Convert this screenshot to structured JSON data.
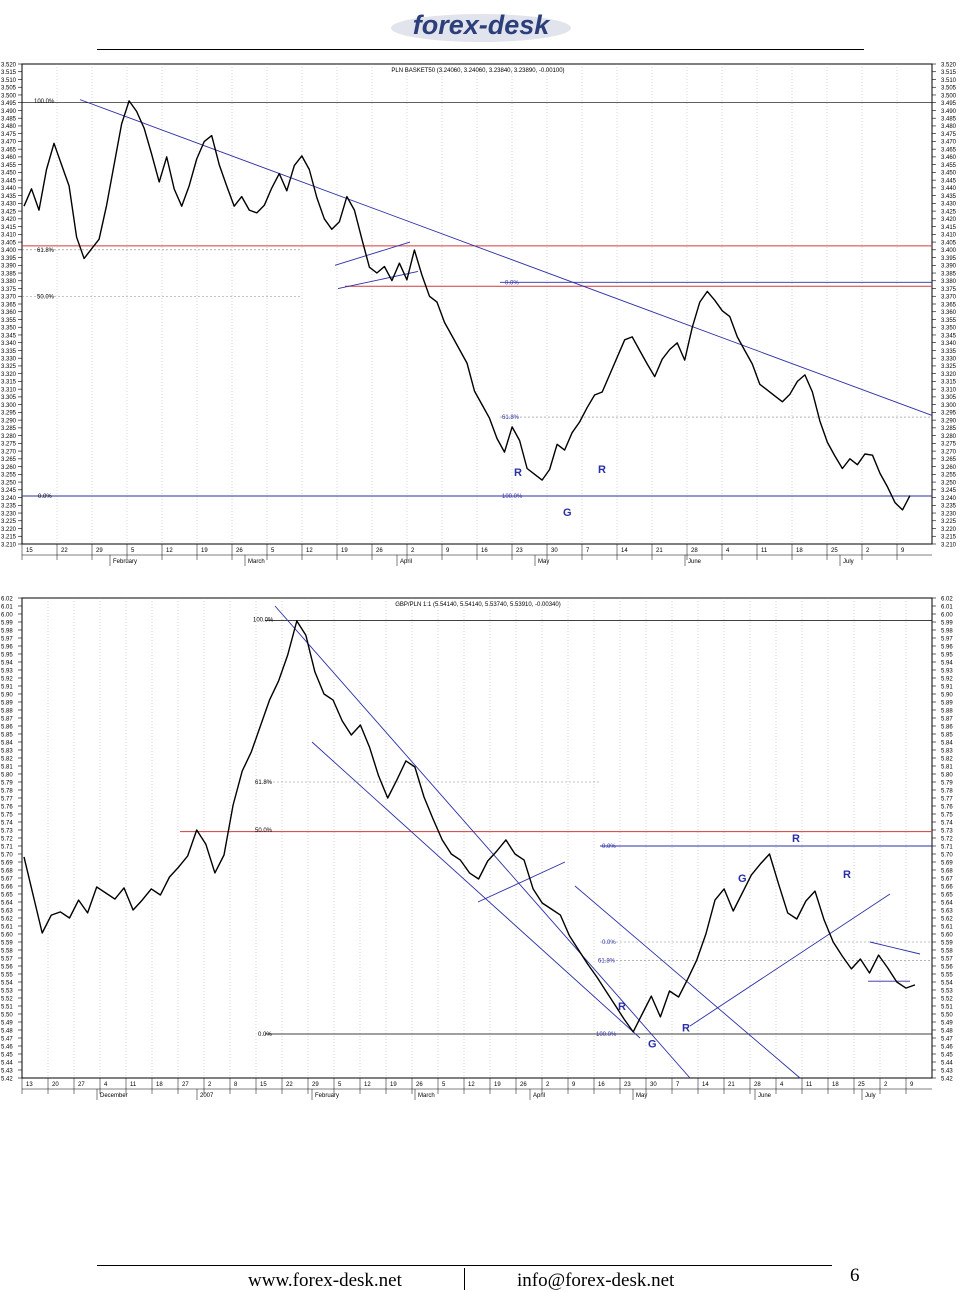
{
  "header": {
    "logo_text": "forex-desk",
    "brand_color": "#2d3f7a"
  },
  "footer": {
    "website": "www.forex-desk.net",
    "email": "info@forex-desk.net",
    "page_number": "6"
  },
  "chart_data": [
    {
      "type": "line",
      "title": "PLN BASKET50 (3.24060, 3.24060, 3.23840, 3.23890, -0.00100)",
      "ylim": [
        3.21,
        3.52
      ],
      "y_ticks": [
        "3.210",
        "3.215",
        "3.220",
        "3.225",
        "3.230",
        "3.235",
        "3.240",
        "3.245",
        "3.250",
        "3.255",
        "3.260",
        "3.265",
        "3.270",
        "3.275",
        "3.280",
        "3.285",
        "3.290",
        "3.295",
        "3.300",
        "3.305",
        "3.310",
        "3.315",
        "3.320",
        "3.325",
        "3.330",
        "3.335",
        "3.340",
        "3.345",
        "3.350",
        "3.355",
        "3.360",
        "3.365",
        "3.370",
        "3.375",
        "3.380",
        "3.385",
        "3.390",
        "3.395",
        "3.400",
        "3.405",
        "3.410",
        "3.415",
        "3.420",
        "3.425",
        "3.430",
        "3.435",
        "3.440",
        "3.445",
        "3.450",
        "3.455",
        "3.460",
        "3.465",
        "3.470",
        "3.475",
        "3.480",
        "3.485",
        "3.490",
        "3.495",
        "3.500",
        "3.505",
        "3.510",
        "3.515",
        "3.520"
      ],
      "x_day_labels": [
        "15",
        "22",
        "29",
        "5",
        "12",
        "19",
        "26",
        "5",
        "12",
        "19",
        "26",
        "2",
        "9",
        "16",
        "23",
        "30",
        "7",
        "14",
        "21",
        "28",
        "4",
        "11",
        "18",
        "25",
        "2",
        "9"
      ],
      "x_month_labels": [
        "February",
        "March",
        "April",
        "May",
        "June",
        "July"
      ],
      "grid": true,
      "series": [
        {
          "values": [
            3.43,
            3.44,
            3.425,
            3.45,
            3.47,
            3.455,
            3.44,
            3.41,
            3.395,
            3.4,
            3.405,
            3.43,
            3.455,
            3.48,
            3.498,
            3.49,
            3.478,
            3.46,
            3.445,
            3.46,
            3.438,
            3.43,
            3.442,
            3.458,
            3.468,
            3.475,
            3.455,
            3.44,
            3.43,
            3.435,
            3.425,
            3.422,
            3.43,
            3.44,
            3.448,
            3.44,
            3.455,
            3.46,
            3.45,
            3.435,
            3.42,
            3.412,
            3.42,
            3.435,
            3.425,
            3.405,
            3.39,
            3.385,
            3.388,
            3.382,
            3.392,
            3.38,
            3.398,
            3.385,
            3.37,
            3.365,
            3.355,
            3.345,
            3.335,
            3.325,
            3.31,
            3.3,
            3.29,
            3.28,
            3.27,
            3.285,
            3.275,
            3.26,
            3.255,
            3.25,
            3.26,
            3.275,
            3.27,
            3.28,
            3.29,
            3.298,
            3.305,
            3.31,
            3.32,
            3.33,
            3.34,
            3.345,
            3.335,
            3.325,
            3.32,
            3.33,
            3.335,
            3.338,
            3.33,
            3.35,
            3.365,
            3.375,
            3.368,
            3.36,
            3.355,
            3.345,
            3.335,
            3.325,
            3.315,
            3.31,
            3.305,
            3.3,
            3.308,
            3.315,
            3.318,
            3.31,
            3.29,
            3.275,
            3.265,
            3.26,
            3.265,
            3.26,
            3.27,
            3.268,
            3.255,
            3.245,
            3.238,
            3.232,
            3.24
          ]
        }
      ],
      "annotations": {
        "fib_left": [
          "100.0%",
          "61.8%",
          "50.0%",
          "0.0%"
        ],
        "fib_right": [
          "0.0%",
          "61.8%",
          "100.0%"
        ],
        "markers": [
          "R",
          "R",
          "G"
        ]
      }
    },
    {
      "type": "line",
      "title": "GBP/PLN 1:1 (5.54140, 5.54140, 5.53740, 5.53910, -0.00340)",
      "ylim": [
        5.42,
        6.02
      ],
      "y_ticks": [
        "5.42",
        "5.43",
        "5.44",
        "5.45",
        "5.46",
        "5.47",
        "5.48",
        "5.49",
        "5.50",
        "5.51",
        "5.52",
        "5.53",
        "5.54",
        "5.55",
        "5.56",
        "5.57",
        "5.58",
        "5.59",
        "5.60",
        "5.61",
        "5.62",
        "5.63",
        "5.64",
        "5.65",
        "5.66",
        "5.67",
        "5.68",
        "5.69",
        "5.70",
        "5.71",
        "5.72",
        "5.73",
        "5.74",
        "5.75",
        "5.76",
        "5.77",
        "5.78",
        "5.79",
        "5.80",
        "5.81",
        "5.82",
        "5.83",
        "5.84",
        "5.85",
        "5.86",
        "5.87",
        "5.88",
        "5.89",
        "5.90",
        "5.91",
        "5.92",
        "5.93",
        "5.94",
        "5.95",
        "5.96",
        "5.97",
        "5.98",
        "5.99",
        "6.00",
        "6.01",
        "6.02"
      ],
      "x_day_labels": [
        "13",
        "20",
        "27",
        "4",
        "11",
        "18",
        "27",
        "2",
        "8",
        "15",
        "22",
        "29",
        "5",
        "12",
        "19",
        "26",
        "5",
        "12",
        "19",
        "26",
        "2",
        "9",
        "16",
        "23",
        "30",
        "7",
        "14",
        "21",
        "28",
        "4",
        "11",
        "18",
        "25",
        "2",
        "9"
      ],
      "x_month_labels": [
        "December",
        "2007",
        "February",
        "March",
        "April",
        "May",
        "June",
        "July"
      ],
      "grid": true,
      "series": [
        {
          "values": [
            5.7,
            5.65,
            5.6,
            5.62,
            5.63,
            5.62,
            5.64,
            5.63,
            5.66,
            5.65,
            5.64,
            5.66,
            5.63,
            5.64,
            5.66,
            5.65,
            5.67,
            5.68,
            5.7,
            5.73,
            5.71,
            5.68,
            5.7,
            5.76,
            5.8,
            5.83,
            5.86,
            5.89,
            5.92,
            5.95,
            5.99,
            5.97,
            5.93,
            5.9,
            5.89,
            5.87,
            5.85,
            5.86,
            5.83,
            5.8,
            5.77,
            5.79,
            5.82,
            5.81,
            5.77,
            5.74,
            5.72,
            5.7,
            5.69,
            5.68,
            5.67,
            5.69,
            5.7,
            5.72,
            5.7,
            5.69,
            5.66,
            5.64,
            5.63,
            5.62,
            5.6,
            5.58,
            5.56,
            5.55,
            5.53,
            5.51,
            5.49,
            5.48,
            5.5,
            5.52,
            5.5,
            5.53,
            5.52,
            5.54,
            5.57,
            5.6,
            5.64,
            5.66,
            5.63,
            5.65,
            5.67,
            5.69,
            5.7,
            5.66,
            5.63,
            5.62,
            5.64,
            5.65,
            5.62,
            5.59,
            5.57,
            5.56,
            5.57,
            5.55,
            5.57,
            5.56,
            5.54,
            5.53,
            5.54
          ]
        }
      ],
      "annotations": {
        "fib_left": [
          "100.0%",
          "61.8%",
          "50.0%",
          "0.0%"
        ],
        "fib_right": [
          "0.0%",
          "0.0%",
          "61.8%",
          "100.0%"
        ],
        "markers": [
          "G",
          "R",
          "R",
          "R",
          "R",
          "G"
        ]
      }
    }
  ]
}
